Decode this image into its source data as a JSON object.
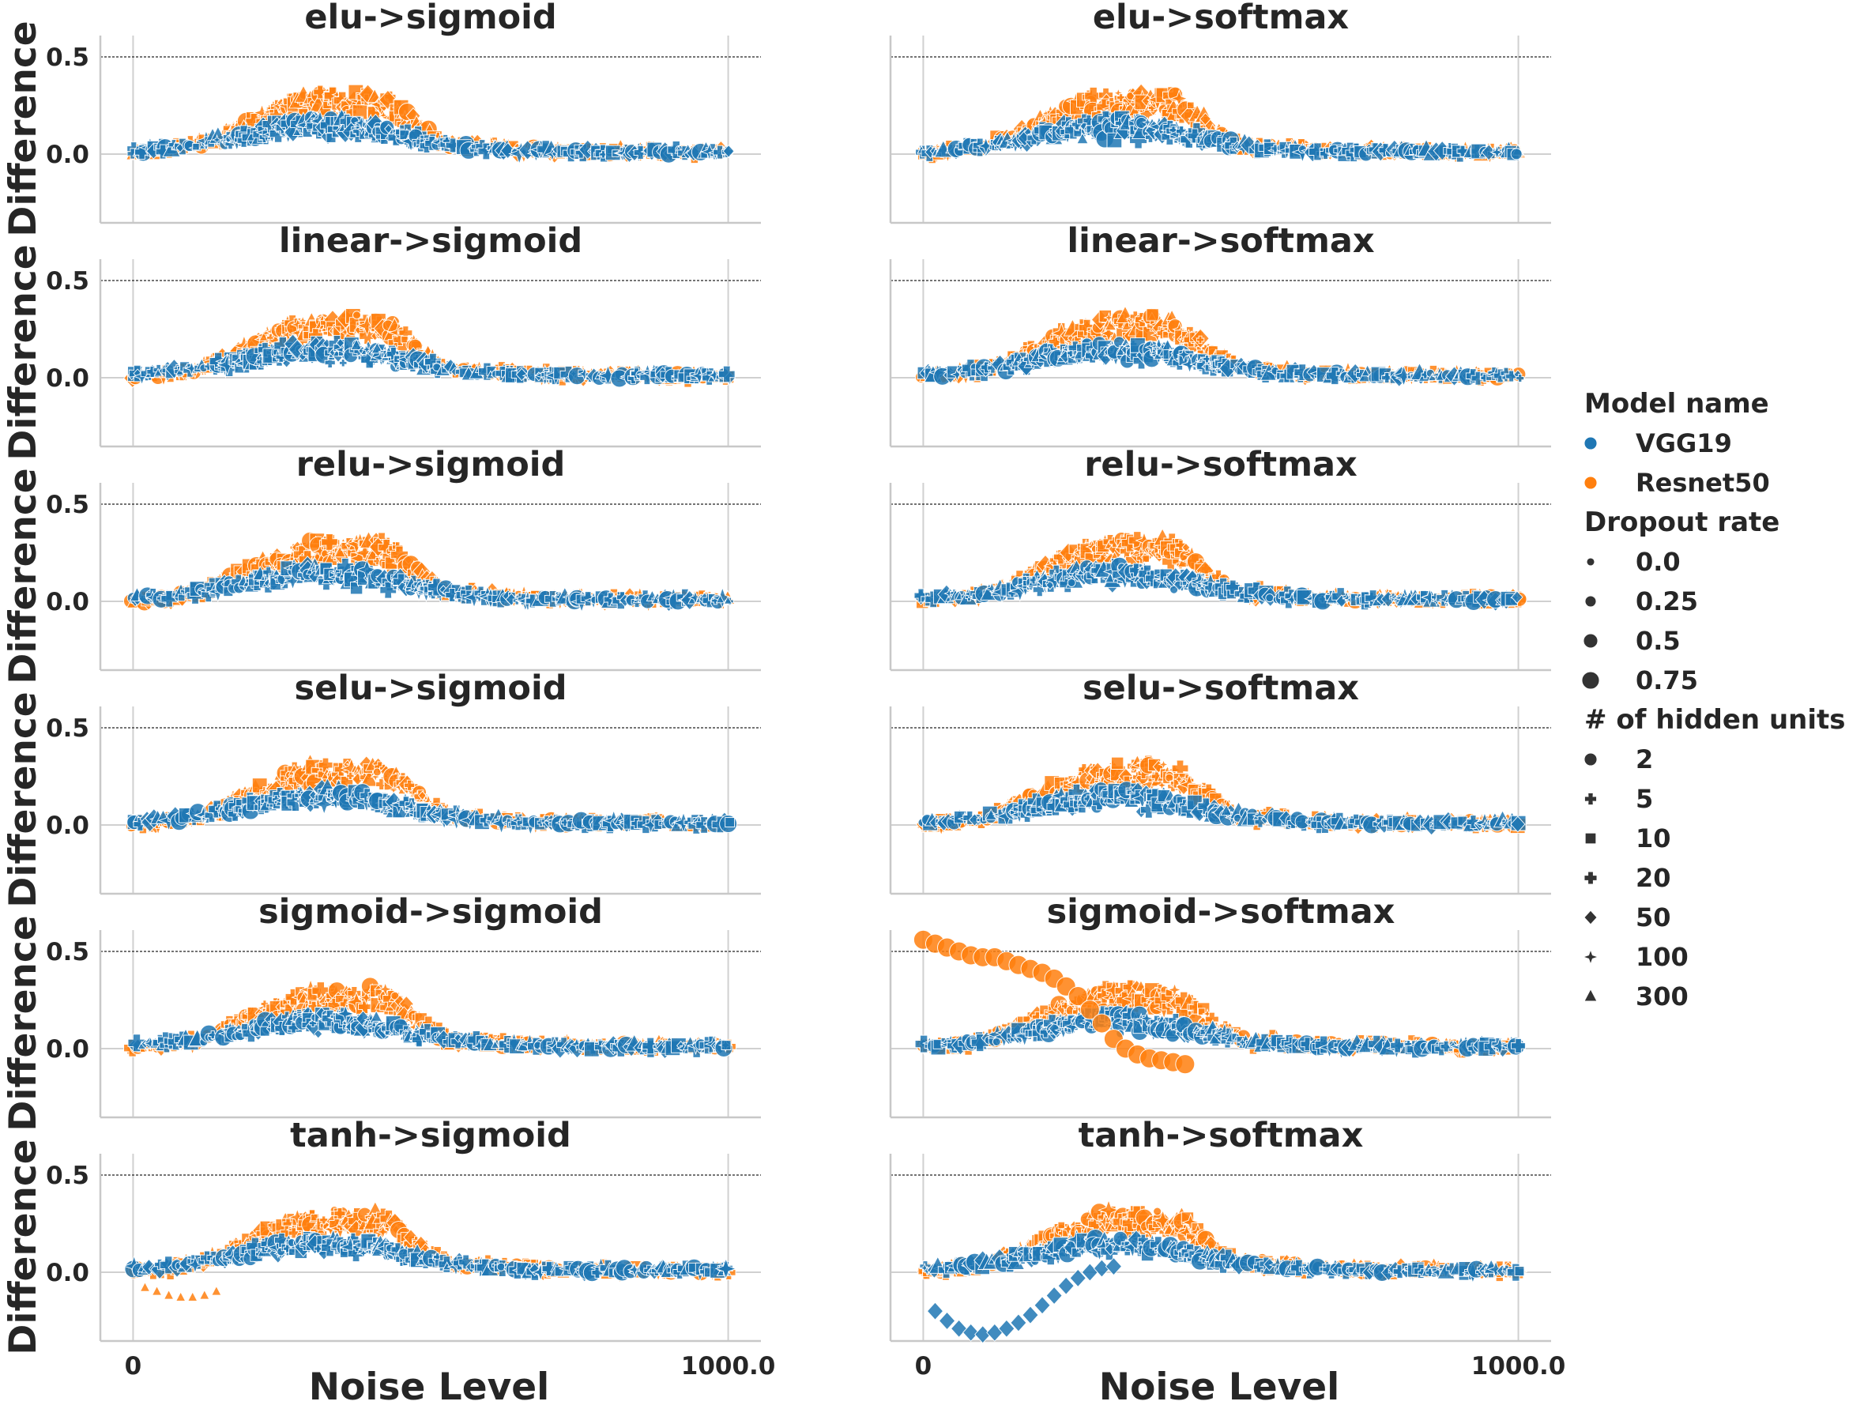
{
  "chart_data": {
    "type": "scatter",
    "x_label": "Noise Level",
    "y_label": "Difference",
    "x_ticks": [
      "0",
      "1000.0"
    ],
    "y_ticks": [
      "0.0",
      "0.5"
    ],
    "x_range": [
      -55,
      1055
    ],
    "y_range": [
      -0.35,
      0.6
    ],
    "reference_line_y": 0.5,
    "grid": "vertical and y=0 only",
    "legend_placement": "right",
    "colors": {
      "VGG19": "#1f77b4",
      "Resnet50": "#ff7f0e"
    },
    "legend": {
      "hue_title": "Model name",
      "hue": [
        "VGG19",
        "Resnet50"
      ],
      "size_title": "Dropout rate",
      "size": [
        "0.0",
        "0.25",
        "0.5",
        "0.75"
      ],
      "style_title": "# of hidden units",
      "style": [
        {
          "label": "2",
          "marker": "circle"
        },
        {
          "label": "5",
          "marker": "x"
        },
        {
          "label": "10",
          "marker": "square"
        },
        {
          "label": "20",
          "marker": "plus"
        },
        {
          "label": "50",
          "marker": "diamond"
        },
        {
          "label": "100",
          "marker": "star"
        },
        {
          "label": "300",
          "marker": "triangle"
        }
      ]
    },
    "panels": [
      {
        "title": "elu->sigmoid"
      },
      {
        "title": "elu->softmax"
      },
      {
        "title": "linear->sigmoid"
      },
      {
        "title": "linear->softmax"
      },
      {
        "title": "relu->sigmoid"
      },
      {
        "title": "relu->softmax"
      },
      {
        "title": "selu->sigmoid"
      },
      {
        "title": "selu->softmax"
      },
      {
        "title": "sigmoid->sigmoid"
      },
      {
        "title": "sigmoid->softmax",
        "outliers": [
          {
            "series": "Resnet50",
            "marker": "circle",
            "dropout": "0.75",
            "x": [
              0,
              20,
              40,
              60,
              80,
              100,
              120,
              140,
              160,
              180,
              200,
              220,
              240,
              260,
              280,
              300,
              320,
              340,
              360,
              380,
              400,
              420,
              440
            ],
            "y": [
              0.56,
              0.54,
              0.52,
              0.5,
              0.48,
              0.47,
              0.47,
              0.45,
              0.43,
              0.41,
              0.39,
              0.36,
              0.32,
              0.27,
              0.2,
              0.13,
              0.05,
              0.0,
              -0.03,
              -0.05,
              -0.06,
              -0.07,
              -0.08
            ]
          }
        ]
      },
      {
        "title": "tanh->sigmoid",
        "outliers": [
          {
            "series": "Resnet50",
            "marker": "triangle",
            "dropout": "0.0",
            "x": [
              20,
              40,
              60,
              80,
              100,
              120,
              140
            ],
            "y": [
              -0.08,
              -0.1,
              -0.12,
              -0.13,
              -0.13,
              -0.12,
              -0.1
            ]
          }
        ]
      },
      {
        "title": "tanh->softmax",
        "outliers": [
          {
            "series": "VGG19",
            "marker": "diamond",
            "dropout": "0.5",
            "x": [
              20,
              40,
              60,
              80,
              100,
              120,
              140,
              160,
              180,
              200,
              220,
              240,
              260,
              280,
              300,
              320
            ],
            "y": [
              -0.2,
              -0.25,
              -0.29,
              -0.31,
              -0.32,
              -0.31,
              -0.29,
              -0.26,
              -0.22,
              -0.17,
              -0.12,
              -0.07,
              -0.03,
              0.0,
              0.02,
              0.03
            ]
          }
        ]
      }
    ]
  }
}
